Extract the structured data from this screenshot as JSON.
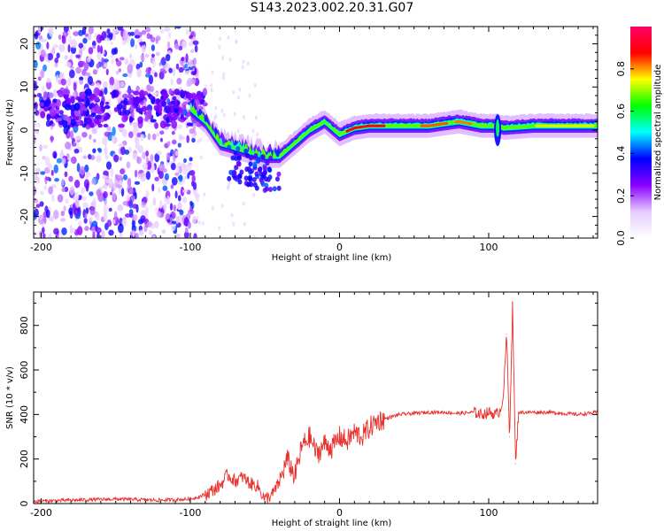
{
  "title": "S143.2023.002.20.31.G07",
  "chart_data": [
    {
      "type": "heatmap",
      "xlabel": "Height of straight line (km)",
      "ylabel": "Frequency (Hz)",
      "xlim": [
        -205,
        173
      ],
      "ylim": [
        -25,
        24
      ],
      "xticks": [
        "-200",
        "-100",
        "0",
        "100"
      ],
      "yticks": [
        "-20",
        "-10",
        "0",
        "10",
        "20"
      ],
      "colorbar": {
        "label": "Normalized spectral amplitude",
        "range": [
          0,
          1
        ],
        "ticks": [
          "0.0",
          "0.2",
          "0.4",
          "0.6",
          "0.8"
        ],
        "colormap": [
          "#ffffff",
          "#e6ccff",
          "#8800ff",
          "#0000ff",
          "#00ffff",
          "#00ff00",
          "#ffff00",
          "#ff0000",
          "#ff0066"
        ]
      },
      "ridge": [
        {
          "x": -100,
          "y": 5
        },
        {
          "x": -90,
          "y": 2
        },
        {
          "x": -80,
          "y": -3
        },
        {
          "x": -70,
          "y": -4
        },
        {
          "x": -60,
          "y": -5
        },
        {
          "x": -50,
          "y": -6
        },
        {
          "x": -40,
          "y": -6
        },
        {
          "x": -30,
          "y": -3
        },
        {
          "x": -20,
          "y": 0
        },
        {
          "x": -10,
          "y": 2
        },
        {
          "x": 0,
          "y": -1
        },
        {
          "x": 10,
          "y": 0.5
        },
        {
          "x": 20,
          "y": 1
        },
        {
          "x": 40,
          "y": 1
        },
        {
          "x": 60,
          "y": 1
        },
        {
          "x": 80,
          "y": 2
        },
        {
          "x": 95,
          "y": 1
        },
        {
          "x": 102,
          "y": 1
        },
        {
          "x": 106,
          "y": 1
        },
        {
          "x": 110,
          "y": 0.5
        },
        {
          "x": 130,
          "y": 1
        },
        {
          "x": 150,
          "y": 1
        },
        {
          "x": 173,
          "y": 1
        }
      ]
    },
    {
      "type": "line",
      "xlabel": "Height of straight line (km)",
      "ylabel": "SNR (10 * v/v)",
      "xlim": [
        -205,
        173
      ],
      "ylim": [
        0,
        950
      ],
      "xticks": [
        "-200",
        "-100",
        "0",
        "100"
      ],
      "yticks": [
        "0",
        "200",
        "400",
        "600",
        "800"
      ],
      "color": "#e8302c",
      "series": [
        {
          "x": [
            -205,
            -180,
            -150,
            -120,
            -100,
            -90,
            -80,
            -75,
            -70,
            -65,
            -60,
            -55,
            -50,
            -45,
            -40,
            -35,
            -30,
            -25,
            -20,
            -15,
            -10,
            -5,
            0,
            5,
            10,
            15,
            20,
            25,
            30,
            40,
            50,
            60,
            70,
            80,
            90,
            95,
            100,
            105,
            108,
            110,
            112,
            114,
            116,
            118,
            120,
            140,
            160,
            173
          ],
          "values": [
            10,
            15,
            20,
            15,
            20,
            40,
            80,
            130,
            100,
            120,
            90,
            80,
            20,
            40,
            100,
            200,
            120,
            260,
            300,
            220,
            270,
            250,
            300,
            280,
            320,
            300,
            340,
            370,
            380,
            400,
            405,
            410,
            410,
            405,
            410,
            400,
            410,
            400,
            420,
            500,
            760,
            300,
            900,
            180,
            410,
            410,
            400,
            410
          ]
        }
      ]
    }
  ]
}
